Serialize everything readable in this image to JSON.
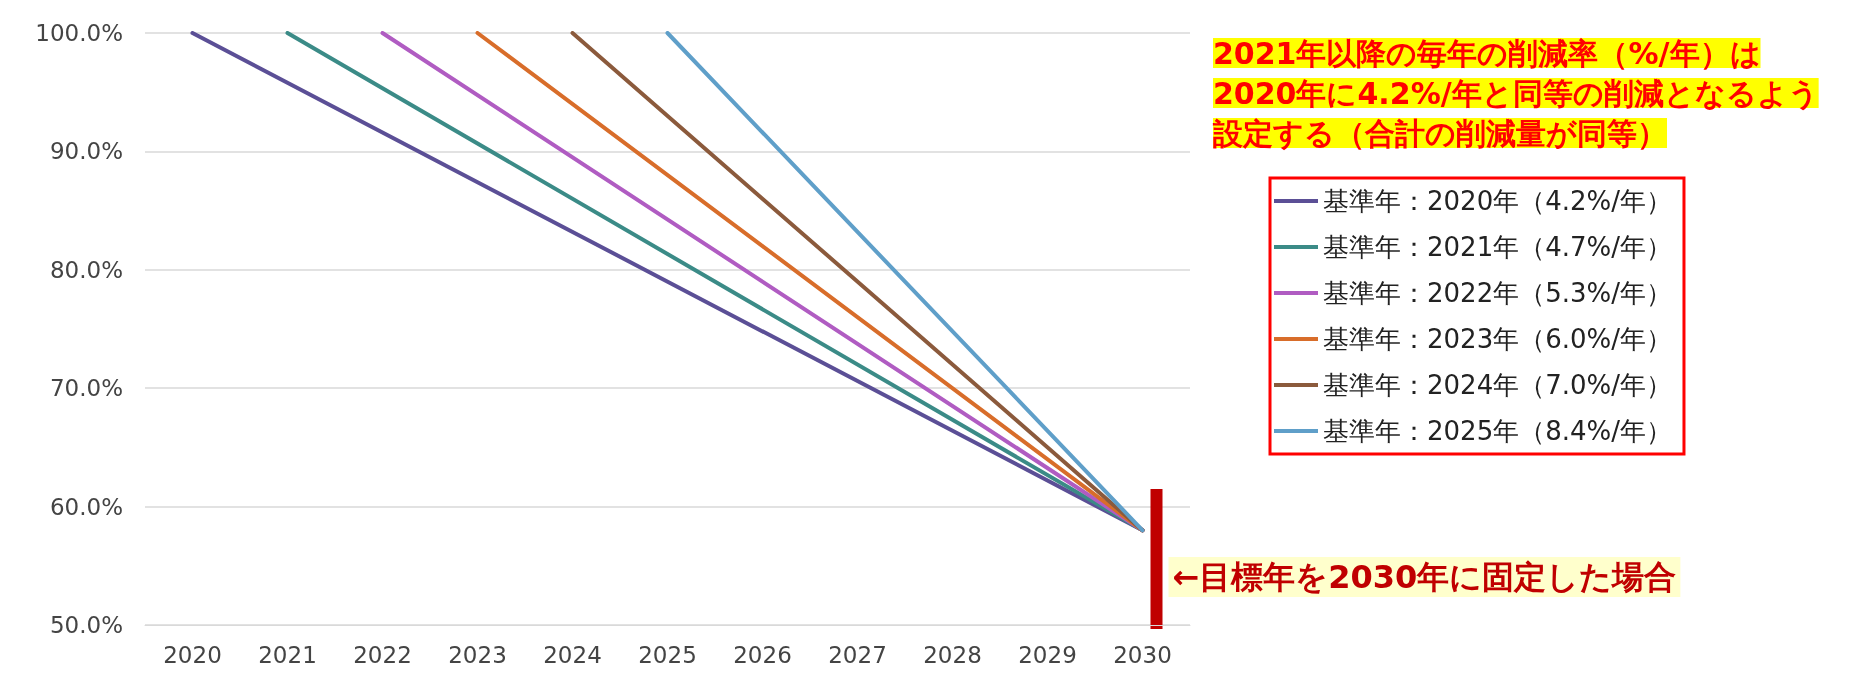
{
  "chart_data": {
    "type": "line",
    "categories": [
      "2020",
      "2021",
      "2022",
      "2023",
      "2024",
      "2025",
      "2026",
      "2027",
      "2028",
      "2029",
      "2030"
    ],
    "series": [
      {
        "name": "基準年：2020年（4.2%/年）",
        "color": "#5b4f96",
        "values": [
          100,
          null,
          null,
          null,
          null,
          null,
          null,
          null,
          null,
          null,
          58
        ]
      },
      {
        "name": "基準年：2021年（4.7%/年）",
        "color": "#3b8b87",
        "values": [
          null,
          100,
          null,
          null,
          null,
          null,
          null,
          null,
          null,
          null,
          58
        ]
      },
      {
        "name": "基準年：2022年（5.3%/年）",
        "color": "#b05cc2",
        "values": [
          null,
          null,
          100,
          null,
          null,
          null,
          null,
          null,
          null,
          null,
          58
        ]
      },
      {
        "name": "基準年：2023年（6.0%/年）",
        "color": "#d86d2a",
        "values": [
          null,
          null,
          null,
          100,
          null,
          null,
          null,
          null,
          null,
          null,
          58
        ]
      },
      {
        "name": "基準年：2024年（7.0%/年）",
        "color": "#8b5a3c",
        "values": [
          null,
          null,
          null,
          null,
          100,
          null,
          null,
          null,
          null,
          null,
          58
        ]
      },
      {
        "name": "基準年：2025年（8.4%/年）",
        "color": "#5f9fc9",
        "values": [
          null,
          null,
          null,
          null,
          null,
          100,
          null,
          null,
          null,
          null,
          58
        ]
      }
    ],
    "ylim": [
      50,
      100
    ],
    "yticks": [
      {
        "value": 50,
        "label": "50.0%"
      },
      {
        "value": 60,
        "label": "60.0%"
      },
      {
        "value": 70,
        "label": "70.0%"
      },
      {
        "value": 80,
        "label": "80.0%"
      },
      {
        "value": 90,
        "label": "90.0%"
      },
      {
        "value": 100,
        "label": "100.0%"
      }
    ],
    "grid": "y",
    "legend": "right",
    "marker": "none",
    "line_style": "solid",
    "annotations": [
      "2021年以降の毎年の削減率（%/年）は",
      "2020年に4.2%/年と同等の削減となるよう",
      "設定する（合計の削減量が同等）"
    ],
    "ref_lines": [
      {
        "axis": "x",
        "value": "2030",
        "label": "←目標年を2030年に固定した場合",
        "color": "#c00000",
        "line_style": "solid"
      }
    ]
  }
}
